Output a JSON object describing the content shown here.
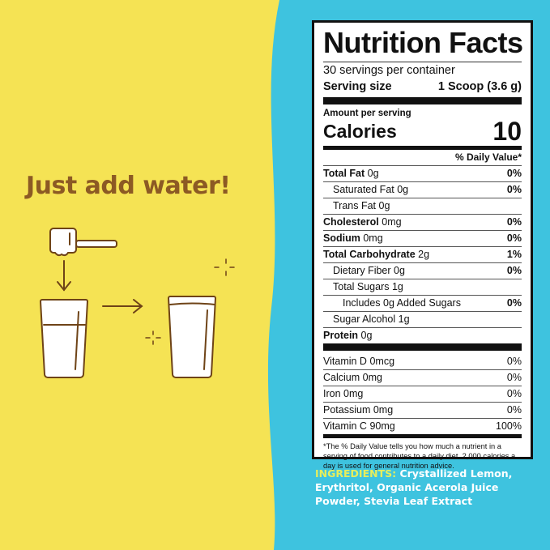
{
  "colors": {
    "yellow": "#f5e354",
    "blue": "#3ec3df",
    "brown": "#8c5a24",
    "ingredients_label": "#e6ee5c"
  },
  "headline": "Just add water!",
  "illustration": {
    "icons": [
      "scoop-icon",
      "arrow-down-icon",
      "glass-half-water-icon",
      "arrow-right-icon",
      "glass-full-icon",
      "sparkle-icon"
    ]
  },
  "label": {
    "title": "Nutrition Facts",
    "servings": "30 servings per container",
    "serving_size_label": "Serving size",
    "serving_size_value": "1 Scoop (3.6 g)",
    "amount_per_serving": "Amount per serving",
    "calories_label": "Calories",
    "calories_value": "10",
    "dv_header": "% Daily Value*",
    "nutrients": [
      {
        "name": "Total Fat",
        "amount": "0g",
        "dv": "0%",
        "bold": true,
        "indent": 0
      },
      {
        "name": "Saturated Fat",
        "amount": "0g",
        "dv": "0%",
        "bold": false,
        "indent": 1
      },
      {
        "name": "Trans Fat",
        "amount": "0g",
        "dv": "",
        "bold": false,
        "indent": 1
      },
      {
        "name": "Cholesterol",
        "amount": "0mg",
        "dv": "0%",
        "bold": true,
        "indent": 0
      },
      {
        "name": "Sodium",
        "amount": "0mg",
        "dv": "0%",
        "bold": true,
        "indent": 0
      },
      {
        "name": "Total Carbohydrate",
        "amount": "2g",
        "dv": "1%",
        "bold": true,
        "indent": 0
      },
      {
        "name": "Dietary Fiber",
        "amount": "0g",
        "dv": "0%",
        "bold": false,
        "indent": 1
      },
      {
        "name": "Total Sugars",
        "amount": "1g",
        "dv": "",
        "bold": false,
        "indent": 1
      },
      {
        "name": "Includes 0g Added Sugars",
        "amount": "",
        "dv": "0%",
        "bold": false,
        "indent": 2
      },
      {
        "name": "Sugar Alcohol",
        "amount": "1g",
        "dv": "",
        "bold": false,
        "indent": 1
      },
      {
        "name": "Protein",
        "amount": "0g",
        "dv": "",
        "bold": true,
        "indent": 0
      }
    ],
    "vitamins": [
      {
        "name": "Vitamin D",
        "amount": "0mcg",
        "dv": "0%"
      },
      {
        "name": "Calcium",
        "amount": "0mg",
        "dv": "0%"
      },
      {
        "name": "Iron",
        "amount": "0mg",
        "dv": "0%"
      },
      {
        "name": "Potassium",
        "amount": "0mg",
        "dv": "0%"
      },
      {
        "name": "Vitamin C",
        "amount": "90mg",
        "dv": "100%"
      }
    ],
    "footnote": "*The % Daily Value tells you how much a nutrient in a serving of food contributes to a daily diet. 2,000 calories a day is used for general nutrition advice."
  },
  "ingredients": {
    "label": "INGREDIENTS:",
    "text": " Crystallized Lemon, Erythritol, Organic Acerola Juice Powder, Stevia Leaf Extract"
  }
}
